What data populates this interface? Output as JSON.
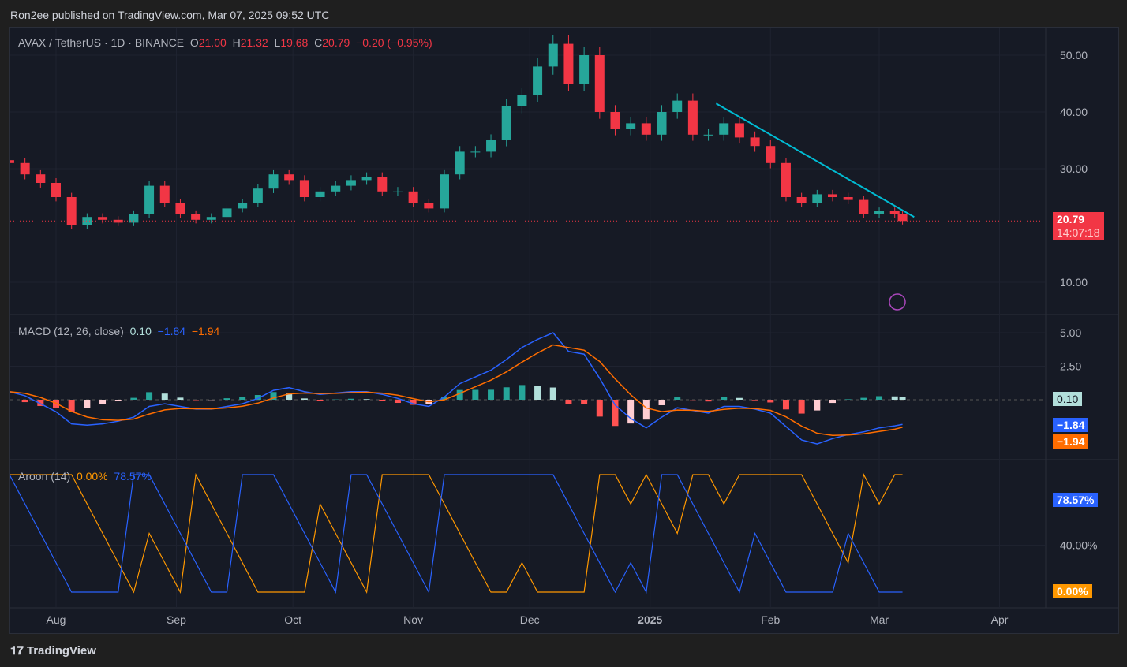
{
  "header": {
    "published": "Ron2ee published on TradingView.com, Mar 07, 2025 09:52 UTC"
  },
  "legend": {
    "symbol": "AVAX / TetherUS · 1D · BINANCE",
    "o_label": "O",
    "o": "21.00",
    "h_label": "H",
    "h": "21.32",
    "l_label": "L",
    "l": "19.68",
    "c_label": "C",
    "c": "20.79",
    "change": "−0.20 (−0.95%)"
  },
  "price_tag": {
    "price": "20.79",
    "countdown": "14:07:18"
  },
  "macd_legend": {
    "title": "MACD (12, 26, close)",
    "hist": "0.10",
    "macd": "−1.84",
    "signal": "−1.94"
  },
  "aroon_legend": {
    "title": "Aroon (14)",
    "down": "0.00%",
    "up": "78.57%"
  },
  "footer": {
    "brand": "TradingView"
  },
  "colors": {
    "up": "#26a69a",
    "down": "#f23645",
    "macd": "#2962ff",
    "signal": "#ff6d00",
    "aroon_up": "#2962ff",
    "aroon_down": "#ff9800",
    "trendline": "#00bcd4"
  },
  "chart_data": {
    "type": "candlestick",
    "price_axis": {
      "ticks": [
        "50.00",
        "40.00",
        "30.00",
        "10.00"
      ],
      "values": [
        50,
        40,
        30,
        10
      ]
    },
    "macd_axis": {
      "ticks": [
        "5.00",
        "2.50"
      ],
      "values": [
        5,
        2.5
      ]
    },
    "aroon_axis": {
      "ticks": [
        "40.00%"
      ],
      "values": [
        40
      ]
    },
    "time_axis": {
      "labels": [
        "Aug",
        "Sep",
        "Oct",
        "Nov",
        "Dec",
        "2025",
        "Feb",
        "Mar",
        "Apr"
      ],
      "dates": [
        "2024-08-01",
        "2024-09-01",
        "2024-10-01",
        "2024-11-01",
        "2024-12-01",
        "2025-01-01",
        "2025-02-01",
        "2025-03-01",
        "2025-04-01"
      ]
    },
    "dates": [
      "2024-07-20",
      "2024-07-24",
      "2024-07-28",
      "2024-08-01",
      "2024-08-05",
      "2024-08-09",
      "2024-08-13",
      "2024-08-17",
      "2024-08-21",
      "2024-08-25",
      "2024-08-29",
      "2024-09-02",
      "2024-09-06",
      "2024-09-10",
      "2024-09-14",
      "2024-09-18",
      "2024-09-22",
      "2024-09-26",
      "2024-09-30",
      "2024-10-04",
      "2024-10-08",
      "2024-10-12",
      "2024-10-16",
      "2024-10-20",
      "2024-10-24",
      "2024-10-28",
      "2024-11-01",
      "2024-11-05",
      "2024-11-09",
      "2024-11-13",
      "2024-11-17",
      "2024-11-21",
      "2024-11-25",
      "2024-11-29",
      "2024-12-03",
      "2024-12-07",
      "2024-12-11",
      "2024-12-15",
      "2024-12-19",
      "2024-12-23",
      "2024-12-27",
      "2024-12-31",
      "2025-01-04",
      "2025-01-08",
      "2025-01-12",
      "2025-01-16",
      "2025-01-20",
      "2025-01-24",
      "2025-01-28",
      "2025-02-01",
      "2025-02-05",
      "2025-02-09",
      "2025-02-13",
      "2025-02-17",
      "2025-02-21",
      "2025-02-25",
      "2025-03-01",
      "2025-03-05",
      "2025-03-07"
    ],
    "close": [
      31,
      29,
      27.5,
      25,
      20,
      21.5,
      21,
      20.5,
      22,
      27,
      24,
      22,
      21,
      21.5,
      23,
      24,
      26.5,
      29,
      28,
      25,
      26,
      27,
      28,
      28.5,
      26,
      26,
      24,
      23,
      29,
      33,
      33,
      35,
      41,
      43,
      48,
      52,
      45,
      50,
      40,
      37,
      38,
      36,
      40,
      42,
      36,
      36,
      38,
      35.5,
      34,
      31,
      25,
      24,
      25.5,
      25,
      24.5,
      22,
      22.5,
      22,
      20.79
    ],
    "macd": [
      0.6,
      0.3,
      -0.3,
      -0.9,
      -1.8,
      -1.9,
      -1.8,
      -1.6,
      -1.3,
      -0.5,
      -0.3,
      -0.5,
      -0.7,
      -0.7,
      -0.5,
      -0.3,
      0.1,
      0.7,
      0.9,
      0.6,
      0.4,
      0.5,
      0.6,
      0.6,
      0.4,
      0.1,
      -0.3,
      -0.5,
      0.2,
      1.2,
      1.7,
      2.2,
      3.0,
      3.9,
      4.5,
      5.0,
      3.6,
      3.4,
      1.6,
      -0.4,
      -1.4,
      -2.1,
      -1.3,
      -0.6,
      -0.8,
      -1.0,
      -0.5,
      -0.5,
      -0.7,
      -1.0,
      -2.0,
      -3.0,
      -3.3,
      -2.9,
      -2.6,
      -2.4,
      -2.1,
      -1.95,
      -1.84
    ],
    "trendline": {
      "from": {
        "date": "2025-01-18",
        "price": 41.5
      },
      "to": {
        "date": "2025-03-10",
        "price": 21.5
      }
    }
  }
}
